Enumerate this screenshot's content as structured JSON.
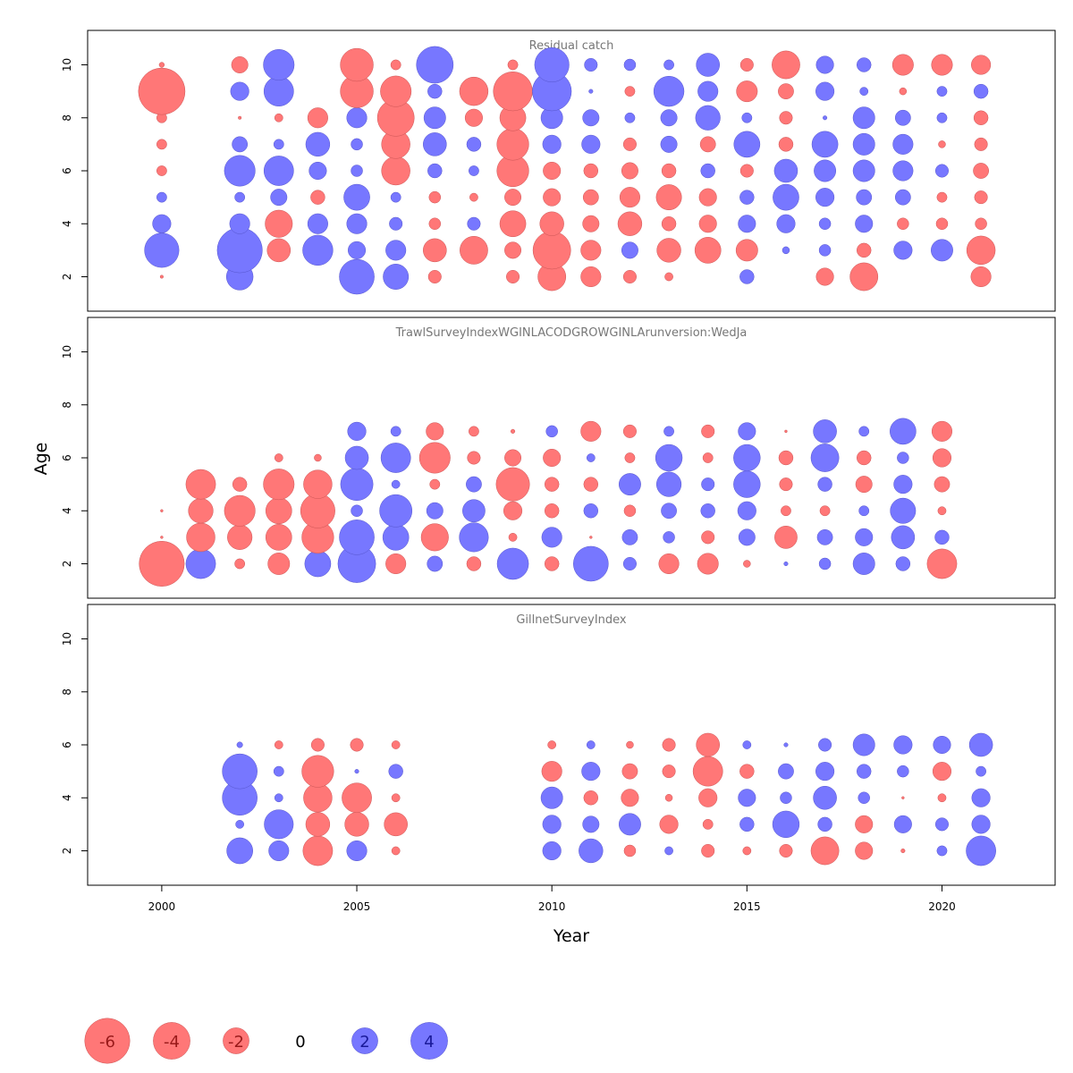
{
  "chart_data": {
    "type": "scatter",
    "subtype": "bubble-residual",
    "xlabel": "Year",
    "ylabel": "Age",
    "xlim": [
      1998.1,
      2022.9
    ],
    "x_ticks": [
      2000,
      2005,
      2010,
      2015,
      2020
    ],
    "ylim": [
      0.7,
      11.3
    ],
    "y_ticks": [
      2,
      4,
      6,
      8,
      10
    ],
    "colors": {
      "positive": "#7777ff",
      "negative": "#ff7777",
      "positive_text": "#1a1a99",
      "negative_text": "#991a1a",
      "title": "#777777"
    },
    "legend": {
      "placement": "bottom-left",
      "values": [
        -6,
        -4,
        -2,
        0,
        2,
        4
      ],
      "labels": [
        "-6",
        "-4",
        "-2",
        "0",
        "2",
        "4"
      ]
    },
    "panels": [
      {
        "title": "Residual catch",
        "ages": [
          2,
          3,
          4,
          5,
          6,
          7,
          8,
          9,
          10
        ],
        "years": [
          2000,
          2002,
          2003,
          2004,
          2005,
          2006,
          2007,
          2008,
          2009,
          2010,
          2011,
          2012,
          2013,
          2014,
          2015,
          2016,
          2017,
          2018,
          2019,
          2020,
          2021
        ],
        "values": [
          [
            -0.03,
            3.5,
            1.0,
            0.3,
            -0.3,
            -0.3,
            -0.3,
            -6.4,
            -0.08
          ],
          [
            2.1,
            6.0,
            1.2,
            0.3,
            2.8,
            0.7,
            -0.03,
            1.0,
            -0.8
          ],
          [
            null,
            -1.6,
            -2.2,
            0.8,
            2.6,
            0.3,
            -0.2,
            2.6,
            2.8
          ],
          [
            null,
            2.7,
            1.2,
            -0.6,
            0.9,
            1.7,
            -1.2,
            null,
            null
          ],
          [
            3.6,
            0.9,
            1.2,
            2.0,
            0.4,
            0.4,
            1.2,
            -3.2,
            -3.2
          ],
          [
            1.9,
            1.2,
            0.5,
            0.3,
            -2.4,
            -2.4,
            -4.0,
            -2.8,
            -0.3
          ],
          [
            -0.5,
            -1.6,
            -0.4,
            -0.4,
            0.6,
            1.6,
            1.4,
            0.6,
            4.0
          ],
          [
            null,
            -2.3,
            0.5,
            -0.2,
            0.3,
            0.6,
            -0.9,
            -2.4,
            null
          ],
          [
            -0.5,
            -0.8,
            -2.0,
            -0.8,
            -3.0,
            -3.0,
            -2.0,
            -4.5,
            -0.3
          ],
          [
            -2.3,
            -4.2,
            -1.7,
            -0.9,
            -0.9,
            1.0,
            1.4,
            4.5,
            3.5
          ],
          [
            -1.2,
            -1.2,
            -0.8,
            -0.7,
            -0.6,
            1.0,
            0.8,
            0.05,
            0.5
          ],
          [
            -0.5,
            0.8,
            -1.7,
            -1.2,
            -0.8,
            -0.5,
            0.3,
            -0.3,
            0.4
          ],
          [
            -0.2,
            -1.7,
            -0.6,
            -1.9,
            -0.6,
            0.8,
            0.8,
            2.7,
            0.3
          ],
          [
            null,
            -2.0,
            -0.9,
            -0.9,
            0.6,
            -0.7,
            1.8,
            1.2,
            1.6
          ],
          [
            0.6,
            -1.4,
            0.9,
            0.6,
            -0.5,
            2.0,
            0.3,
            -1.3,
            -0.5
          ],
          [
            null,
            0.15,
            1.0,
            2.0,
            1.6,
            -0.6,
            -0.5,
            -0.7,
            -2.3
          ],
          [
            -0.9,
            0.4,
            0.4,
            1.0,
            1.4,
            2.0,
            0.05,
            1.0,
            0.9
          ],
          [
            -2.3,
            -0.6,
            0.9,
            0.7,
            1.4,
            1.4,
            1.4,
            0.2,
            0.6
          ],
          [
            null,
            1.0,
            -0.4,
            0.7,
            1.2,
            1.2,
            0.7,
            -0.15,
            -1.3
          ],
          [
            null,
            1.4,
            -0.4,
            -0.3,
            0.5,
            -0.15,
            0.3,
            0.3,
            -1.3
          ],
          [
            -1.2,
            -2.4,
            -0.4,
            -0.5,
            -0.7,
            -0.5,
            -0.6,
            0.6,
            -1.1
          ]
        ]
      },
      {
        "title": "TrawlSurveyIndexWGINLACODGROWGINLArunversion:WedJa",
        "ages": [
          2,
          3,
          4,
          5,
          6,
          7
        ],
        "years": [
          2000,
          2001,
          2002,
          2003,
          2004,
          2005,
          2006,
          2007,
          2008,
          2009,
          2010,
          2011,
          2012,
          2013,
          2014,
          2015,
          2016,
          2017,
          2018,
          2019,
          2020
        ],
        "values": [
          [
            -6.0,
            -0.02,
            -0.02,
            null,
            null,
            null
          ],
          [
            2.6,
            -2.4,
            -1.8,
            -2.6,
            null,
            null
          ],
          [
            -0.3,
            -1.8,
            -2.8,
            -0.6,
            null,
            null
          ],
          [
            -1.4,
            -2.0,
            -2.0,
            -2.8,
            -0.2,
            null
          ],
          [
            2.0,
            -3.0,
            -3.5,
            -2.4,
            -0.15,
            null
          ],
          [
            4.2,
            3.6,
            0.4,
            3.1,
            1.6,
            1.0
          ],
          [
            -1.2,
            2.0,
            3.1,
            0.2,
            2.6,
            0.3
          ],
          [
            0.7,
            -2.2,
            0.8,
            -0.3,
            -2.8,
            -0.9
          ],
          [
            -0.6,
            2.5,
            1.5,
            0.7,
            -0.5,
            -0.3
          ],
          [
            2.9,
            -0.2,
            -1.0,
            -3.3,
            -0.8,
            -0.05
          ],
          [
            -0.6,
            1.2,
            -0.6,
            -0.6,
            -0.9,
            0.4
          ],
          [
            3.6,
            -0.02,
            0.6,
            -0.6,
            0.2,
            -1.2
          ],
          [
            0.5,
            0.7,
            -0.4,
            1.4,
            -0.3,
            -0.5
          ],
          [
            -1.2,
            0.4,
            0.7,
            1.8,
            2.1,
            0.3
          ],
          [
            -1.3,
            -0.5,
            0.6,
            0.5,
            -0.3,
            -0.5
          ],
          [
            -0.15,
            0.8,
            1.0,
            2.1,
            2.1,
            0.9
          ],
          [
            0.05,
            -1.5,
            -0.3,
            -0.5,
            -0.6,
            -0.02
          ],
          [
            0.4,
            0.7,
            -0.3,
            0.6,
            2.3,
            1.6
          ],
          [
            1.4,
            0.9,
            0.3,
            -0.8,
            -0.6,
            0.3
          ],
          [
            0.6,
            1.6,
            1.9,
            1.0,
            0.4,
            2.0
          ],
          [
            -2.6,
            0.6,
            -0.2,
            -0.7,
            -1.0,
            -1.2
          ]
        ]
      },
      {
        "title": "GillnetSurveyIndex",
        "ages": [
          2,
          3,
          4,
          5,
          6
        ],
        "years": [
          2002,
          2003,
          2004,
          2005,
          2006,
          2010,
          2011,
          2012,
          2013,
          2014,
          2015,
          2016,
          2017,
          2018,
          2019,
          2020,
          2021
        ],
        "values": [
          [
            2.0,
            0.2,
            3.6,
            3.6,
            0.1
          ],
          [
            1.2,
            2.5,
            0.2,
            0.3,
            -0.2
          ],
          [
            -2.6,
            -1.7,
            -2.4,
            -3.0,
            -0.5
          ],
          [
            1.2,
            -1.7,
            -2.6,
            0.05,
            -0.5
          ],
          [
            -0.2,
            -1.6,
            -0.2,
            0.6,
            -0.2
          ],
          [
            1.0,
            1.0,
            1.4,
            -1.2,
            -0.2
          ],
          [
            1.7,
            0.8,
            -0.6,
            1.0,
            0.2
          ],
          [
            -0.4,
            1.4,
            -0.9,
            -0.7,
            -0.15
          ],
          [
            0.2,
            -1.0,
            -0.15,
            -0.5,
            -0.5
          ],
          [
            -0.5,
            -0.3,
            -1.0,
            -2.6,
            -1.6
          ],
          [
            -0.2,
            0.6,
            0.9,
            -0.6,
            0.2
          ],
          [
            -0.5,
            2.1,
            0.4,
            0.7,
            0.05
          ],
          [
            -2.3,
            0.6,
            1.6,
            1.0,
            0.5
          ],
          [
            -0.9,
            -0.9,
            0.4,
            0.6,
            1.4
          ],
          [
            -0.05,
            0.9,
            -0.02,
            0.4,
            1.0
          ],
          [
            0.3,
            0.5,
            -0.2,
            -1.0,
            0.9
          ],
          [
            2.6,
            1.0,
            1.0,
            0.3,
            1.6
          ]
        ]
      }
    ]
  }
}
